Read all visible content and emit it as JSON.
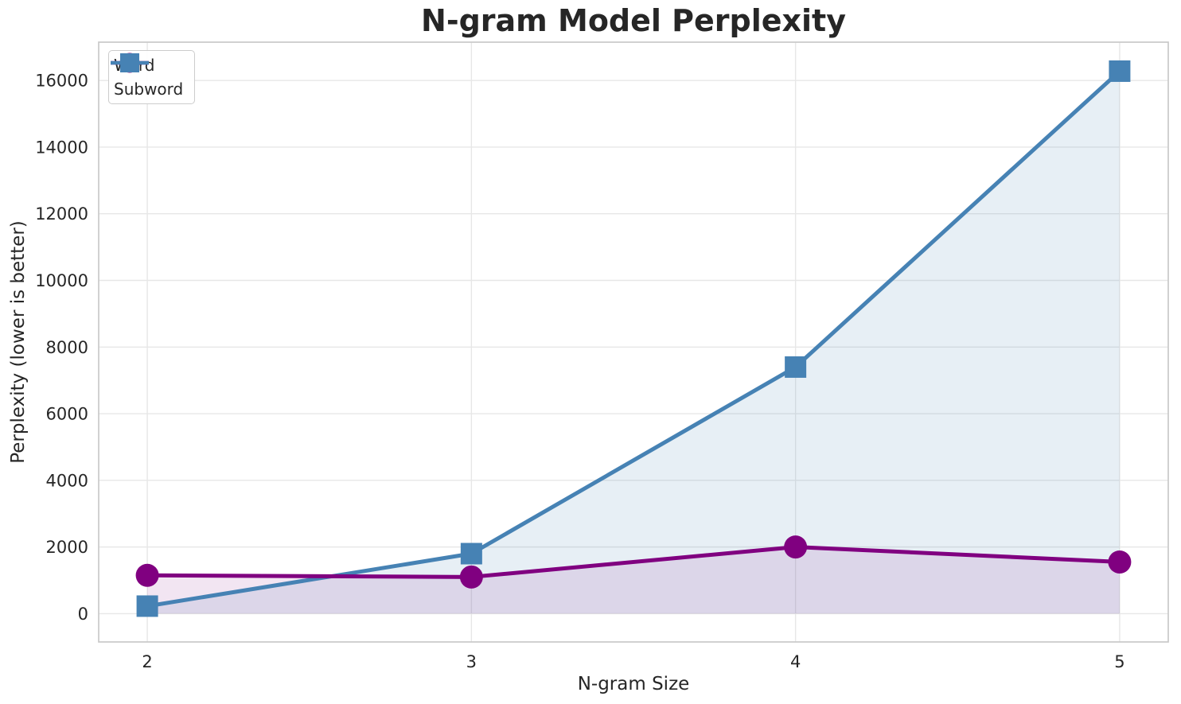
{
  "chart_data": {
    "type": "line",
    "title": "N-gram Model Perplexity",
    "xlabel": "N-gram Size",
    "ylabel": "Perplexity (lower is better)",
    "x": [
      2,
      3,
      4,
      5
    ],
    "xticks": [
      "2",
      "3",
      "4",
      "5"
    ],
    "ytick_values": [
      0,
      2000,
      4000,
      6000,
      8000,
      10000,
      12000,
      14000,
      16000
    ],
    "yticks": [
      "0",
      "2000",
      "4000",
      "6000",
      "8000",
      "10000",
      "12000",
      "14000",
      "16000"
    ],
    "xlim": [
      1.85,
      5.15
    ],
    "ylim": [
      -850,
      17150
    ],
    "grid": true,
    "legend_position": "upper-left",
    "area_fill_baseline": 0,
    "series": [
      {
        "name": "Word",
        "marker": "circle",
        "color": "#800080",
        "fill_color": "rgba(128,0,128,0.10)",
        "values": [
          1150,
          1100,
          2000,
          1550
        ]
      },
      {
        "name": "Subword",
        "marker": "square",
        "color": "#4682B4",
        "fill_color": "rgba(70,130,180,0.13)",
        "values": [
          225,
          1800,
          7400,
          16280
        ]
      }
    ]
  },
  "style": {
    "background": "#ffffff",
    "grid_color": "#e7e7e7",
    "spine_color": "#c9c9c9",
    "text_color": "#262626"
  }
}
